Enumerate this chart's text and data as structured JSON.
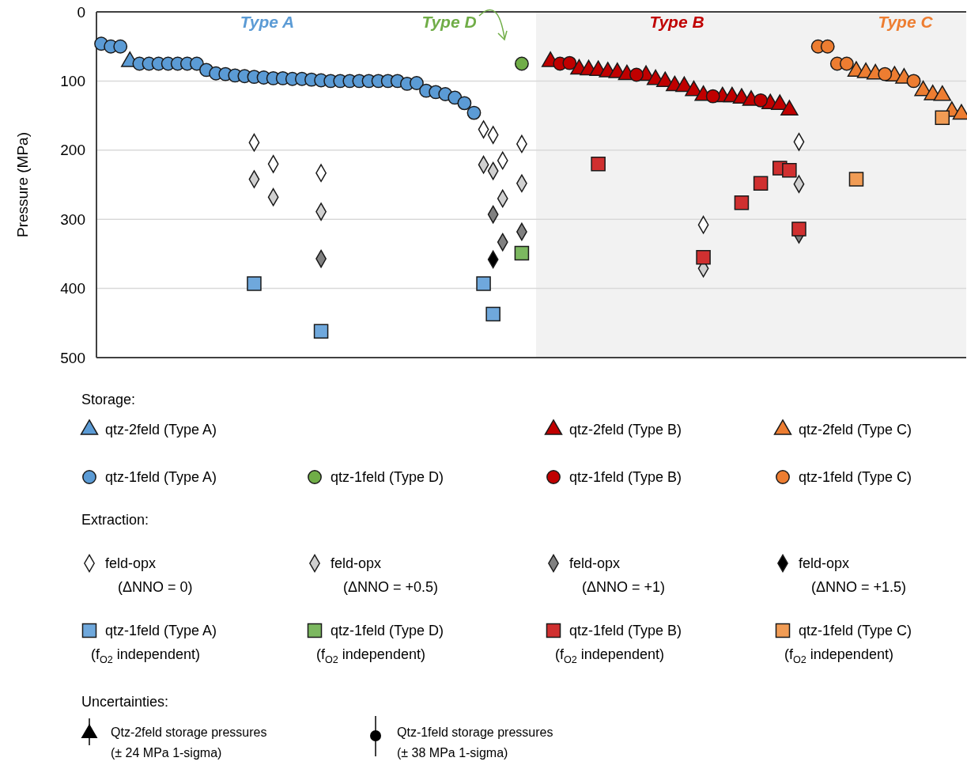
{
  "chart_data": {
    "type": "scatter",
    "ylabel": "Pressure (MPa)",
    "ylim": [
      500,
      0
    ],
    "yticks": [
      0,
      100,
      200,
      300,
      400,
      500
    ],
    "grid": "y",
    "legend": "bottom",
    "tick_labels": "y",
    "categories": [
      null,
      null,
      null,
      null,
      null,
      null,
      null,
      null,
      null,
      null,
      null,
      null,
      null,
      null,
      null,
      null,
      null,
      null,
      null,
      null,
      null,
      null,
      null,
      null,
      null,
      null,
      null,
      null,
      null,
      null,
      null,
      null,
      null,
      null,
      null,
      null,
      null,
      null,
      null,
      null,
      null,
      null,
      null,
      null,
      null,
      null,
      null,
      null,
      null,
      null,
      null,
      null,
      null,
      null,
      null,
      null,
      null,
      null,
      null,
      null,
      null,
      null,
      null,
      null,
      null,
      null,
      null,
      null,
      null,
      null,
      null,
      null,
      null,
      null,
      null,
      null,
      null,
      null,
      null,
      null,
      null,
      null,
      null,
      null,
      null,
      null,
      null,
      null,
      null,
      null,
      null
    ],
    "annotations": [
      "Type A",
      "Type D",
      "Type B",
      "Type C",
      "Storage:",
      "Extraction:",
      "Uncertainties:",
      "Qtz-2feld storage pressures (± 24 MPa 1-sigma)",
      "Qtz-1feld storage pressures (± 38 MPa 1-sigma)"
    ],
    "series": [
      {
        "name": "qtz-2feld (Type A)",
        "marker": "triangle",
        "color": "#5b9bd5",
        "values": [
          null,
          null,
          null,
          72,
          null,
          null,
          null,
          null,
          null,
          null,
          null,
          null,
          null,
          null,
          null,
          null,
          null,
          null,
          null,
          null,
          null,
          null,
          null,
          null,
          null,
          null,
          null,
          null,
          null,
          null,
          null,
          null,
          null,
          null,
          null,
          null,
          null,
          null,
          null,
          null,
          null,
          null,
          null,
          null,
          null,
          null,
          null,
          null,
          null,
          null,
          null,
          null,
          null,
          null,
          null,
          null,
          null,
          null,
          null,
          null,
          null,
          null,
          null,
          null,
          null,
          null,
          null,
          null,
          null,
          null,
          null,
          null,
          null,
          null,
          null,
          null,
          null,
          null,
          null,
          null,
          null,
          null,
          null,
          null,
          null,
          null,
          null,
          null,
          null,
          null,
          null
        ]
      },
      {
        "name": "qtz-2feld (Type B)",
        "marker": "triangle",
        "color": "#c00000",
        "values": [
          null,
          null,
          null,
          null,
          null,
          null,
          null,
          null,
          null,
          null,
          null,
          null,
          null,
          null,
          null,
          null,
          null,
          null,
          null,
          null,
          null,
          null,
          null,
          null,
          null,
          null,
          null,
          null,
          null,
          null,
          null,
          null,
          null,
          null,
          null,
          null,
          null,
          null,
          null,
          null,
          null,
          null,
          null,
          null,
          null,
          null,
          null,
          72,
          null,
          null,
          83,
          84,
          85,
          87,
          88,
          91,
          null,
          92,
          98,
          101,
          107,
          108,
          114,
          121,
          null,
          123,
          123,
          125,
          128,
          null,
          133,
          134,
          142,
          null,
          null,
          null,
          null,
          null,
          null,
          null,
          null,
          null,
          null,
          null,
          null,
          null,
          null,
          null,
          null,
          null,
          null
        ]
      },
      {
        "name": "qtz-2feld (Type C)",
        "marker": "triangle",
        "color": "#ed7d31",
        "values": [
          null,
          null,
          null,
          null,
          null,
          null,
          null,
          null,
          null,
          null,
          null,
          null,
          null,
          null,
          null,
          null,
          null,
          null,
          null,
          null,
          null,
          null,
          null,
          null,
          null,
          null,
          null,
          null,
          null,
          null,
          null,
          null,
          null,
          null,
          null,
          null,
          null,
          null,
          null,
          null,
          null,
          null,
          null,
          null,
          null,
          null,
          null,
          null,
          null,
          null,
          null,
          null,
          null,
          null,
          null,
          null,
          null,
          null,
          null,
          null,
          null,
          null,
          null,
          null,
          null,
          null,
          null,
          null,
          null,
          null,
          null,
          null,
          null,
          null,
          null,
          null,
          null,
          null,
          null,
          86,
          88,
          90,
          null,
          93,
          96,
          null,
          114,
          120,
          121,
          144,
          148
        ]
      },
      {
        "name": "qtz-1feld (Type A)",
        "marker": "circle",
        "color": "#5b9bd5",
        "values": [
          46,
          50,
          50,
          null,
          75,
          75,
          75,
          75,
          75,
          75,
          75,
          84,
          89,
          90,
          92,
          93,
          94,
          95,
          96,
          96,
          97,
          97,
          98,
          99,
          100,
          100,
          100,
          100,
          100,
          100,
          100,
          100,
          104,
          103,
          114,
          116,
          119,
          124,
          132,
          146,
          null,
          null,
          null,
          null,
          null,
          null,
          null,
          null,
          null,
          null,
          null,
          null,
          null,
          null,
          null,
          null,
          null,
          null,
          null,
          null,
          null,
          null,
          null,
          null,
          null,
          null,
          null,
          null,
          null,
          null,
          null,
          null,
          null,
          null,
          null,
          null,
          null,
          null,
          null,
          null,
          null,
          null,
          null,
          null,
          null,
          null,
          null,
          null,
          null,
          null,
          null
        ]
      },
      {
        "name": "qtz-1feld (Type D)",
        "marker": "circle",
        "color": "#70ad47",
        "values": [
          null,
          null,
          null,
          null,
          null,
          null,
          null,
          null,
          null,
          null,
          null,
          null,
          null,
          null,
          null,
          null,
          null,
          null,
          null,
          null,
          null,
          null,
          null,
          null,
          null,
          null,
          null,
          null,
          null,
          null,
          null,
          null,
          null,
          null,
          null,
          null,
          null,
          null,
          null,
          null,
          null,
          null,
          null,
          null,
          75,
          null,
          null,
          null,
          null,
          null,
          null,
          null,
          null,
          null,
          null,
          null,
          null,
          null,
          null,
          null,
          null,
          null,
          null,
          null,
          null,
          null,
          null,
          null,
          null,
          null,
          null,
          null,
          null,
          null,
          null,
          null,
          null,
          null,
          null,
          null,
          null,
          null,
          null,
          null,
          null,
          null,
          null,
          null,
          null,
          null,
          null
        ]
      },
      {
        "name": "qtz-1feld (Type B)",
        "marker": "circle",
        "color": "#c00000",
        "values": [
          null,
          null,
          null,
          null,
          null,
          null,
          null,
          null,
          null,
          null,
          null,
          null,
          null,
          null,
          null,
          null,
          null,
          null,
          null,
          null,
          null,
          null,
          null,
          null,
          null,
          null,
          null,
          null,
          null,
          null,
          null,
          null,
          null,
          null,
          null,
          null,
          null,
          null,
          null,
          null,
          null,
          null,
          null,
          null,
          null,
          null,
          null,
          null,
          75,
          74,
          null,
          null,
          null,
          null,
          null,
          null,
          91,
          null,
          null,
          null,
          null,
          null,
          null,
          null,
          122,
          null,
          null,
          null,
          null,
          128,
          null,
          null,
          null,
          null,
          null,
          null,
          null,
          null,
          null,
          null,
          null,
          null,
          null,
          null,
          null,
          null,
          null,
          null,
          null,
          null,
          null
        ]
      },
      {
        "name": "qtz-1feld (Type C)",
        "marker": "circle",
        "color": "#ed7d31",
        "values": [
          null,
          null,
          null,
          null,
          null,
          null,
          null,
          null,
          null,
          null,
          null,
          null,
          null,
          null,
          null,
          null,
          null,
          null,
          null,
          null,
          null,
          null,
          null,
          null,
          null,
          null,
          null,
          null,
          null,
          null,
          null,
          null,
          null,
          null,
          null,
          null,
          null,
          null,
          null,
          null,
          null,
          null,
          null,
          null,
          null,
          null,
          null,
          null,
          null,
          null,
          null,
          null,
          null,
          null,
          null,
          null,
          null,
          null,
          null,
          null,
          null,
          null,
          null,
          null,
          null,
          null,
          null,
          null,
          null,
          null,
          null,
          null,
          null,
          null,
          null,
          50,
          50,
          75,
          75,
          null,
          null,
          null,
          90,
          null,
          null,
          100,
          null,
          null,
          null,
          null,
          null
        ]
      },
      {
        "name": "feld-opx (ΔNNO = 0)",
        "marker": "diamond",
        "color": "#ffffff",
        "values": [
          null,
          null,
          null,
          null,
          null,
          null,
          null,
          null,
          null,
          null,
          null,
          null,
          null,
          null,
          null,
          null,
          189,
          null,
          220,
          null,
          null,
          null,
          null,
          233,
          null,
          null,
          null,
          null,
          null,
          null,
          null,
          null,
          null,
          null,
          null,
          null,
          null,
          null,
          null,
          null,
          170,
          178,
          215,
          null,
          191,
          null,
          null,
          null,
          null,
          null,
          null,
          null,
          null,
          null,
          null,
          null,
          null,
          null,
          null,
          null,
          null,
          null,
          null,
          308,
          null,
          null,
          null,
          null,
          null,
          null,
          null,
          null,
          null,
          188,
          null,
          null,
          null,
          null,
          null,
          null,
          null,
          null,
          null,
          null,
          null,
          null,
          null,
          null,
          null,
          null,
          null
        ]
      },
      {
        "name": "feld-opx (ΔNNO = +0.5)",
        "marker": "diamond",
        "color": "#d0d0d0",
        "values": [
          null,
          null,
          null,
          null,
          null,
          null,
          null,
          null,
          null,
          null,
          null,
          null,
          null,
          null,
          null,
          null,
          242,
          null,
          268,
          null,
          null,
          null,
          null,
          289,
          null,
          null,
          null,
          null,
          null,
          null,
          null,
          null,
          null,
          null,
          null,
          null,
          null,
          null,
          null,
          null,
          221,
          230,
          270,
          null,
          248,
          null,
          null,
          null,
          null,
          null,
          null,
          null,
          null,
          null,
          null,
          null,
          null,
          null,
          null,
          null,
          null,
          null,
          null,
          371,
          null,
          null,
          null,
          null,
          null,
          null,
          null,
          null,
          null,
          249,
          null,
          null,
          null,
          null,
          null,
          null,
          null,
          null,
          null,
          null,
          null,
          null,
          null,
          null,
          null,
          null,
          null
        ]
      },
      {
        "name": "feld-opx (ΔNNO = +1)",
        "marker": "diamond",
        "color": "#808080",
        "values": [
          null,
          null,
          null,
          null,
          null,
          null,
          null,
          null,
          null,
          null,
          null,
          null,
          null,
          null,
          null,
          null,
          null,
          null,
          null,
          null,
          null,
          null,
          null,
          357,
          null,
          null,
          null,
          null,
          null,
          null,
          null,
          null,
          null,
          null,
          null,
          null,
          null,
          null,
          null,
          null,
          null,
          293,
          333,
          null,
          318,
          null,
          null,
          null,
          null,
          null,
          null,
          null,
          null,
          null,
          null,
          null,
          null,
          null,
          null,
          null,
          null,
          null,
          null,
          null,
          null,
          null,
          null,
          null,
          null,
          null,
          null,
          null,
          null,
          322,
          null,
          null,
          null,
          null,
          null,
          null,
          null,
          null,
          null,
          null,
          null,
          null,
          null,
          null,
          null,
          null,
          null
        ]
      },
      {
        "name": "feld-opx (ΔNNO = +1.5)",
        "marker": "diamond",
        "color": "#000000",
        "values": [
          null,
          null,
          null,
          null,
          null,
          null,
          null,
          null,
          null,
          null,
          null,
          null,
          null,
          null,
          null,
          null,
          null,
          null,
          null,
          null,
          null,
          null,
          null,
          null,
          null,
          null,
          null,
          null,
          null,
          null,
          null,
          null,
          null,
          null,
          null,
          null,
          null,
          null,
          null,
          null,
          null,
          358,
          null,
          null,
          null,
          null,
          null,
          null,
          null,
          null,
          null,
          null,
          null,
          null,
          null,
          null,
          null,
          null,
          null,
          null,
          null,
          null,
          null,
          null,
          null,
          null,
          null,
          null,
          null,
          null,
          null,
          null,
          null,
          null,
          null,
          null,
          null,
          null,
          null,
          null,
          null,
          null,
          null,
          null,
          null,
          null,
          null,
          null,
          null,
          null,
          null
        ]
      },
      {
        "name": "qtz-1feld (Type A) (f$_{O2}$ independent)",
        "marker": "square",
        "color": "#6fa8dc",
        "values": [
          null,
          null,
          null,
          null,
          null,
          null,
          null,
          null,
          null,
          null,
          null,
          null,
          null,
          null,
          null,
          null,
          393,
          null,
          null,
          null,
          null,
          null,
          null,
          462,
          null,
          null,
          null,
          null,
          null,
          null,
          null,
          null,
          null,
          null,
          null,
          null,
          null,
          null,
          null,
          null,
          393,
          437,
          null,
          null,
          null,
          null,
          null,
          null,
          null,
          null,
          null,
          null,
          null,
          null,
          null,
          null,
          null,
          null,
          null,
          null,
          null,
          null,
          null,
          null,
          null,
          null,
          null,
          null,
          null,
          null,
          null,
          null,
          null,
          null,
          null,
          null,
          null,
          null,
          null,
          null,
          null,
          null,
          null,
          null,
          null,
          null,
          null,
          null,
          null,
          null,
          null
        ]
      },
      {
        "name": "qtz-1feld (Type D) (f$_{O2}$ independent)",
        "marker": "square",
        "color": "#7cb860",
        "values": [
          null,
          null,
          null,
          null,
          null,
          null,
          null,
          null,
          null,
          null,
          null,
          null,
          null,
          null,
          null,
          null,
          null,
          null,
          null,
          null,
          null,
          null,
          null,
          null,
          null,
          null,
          null,
          null,
          null,
          null,
          null,
          null,
          null,
          null,
          null,
          null,
          null,
          null,
          null,
          null,
          null,
          null,
          null,
          null,
          349,
          null,
          null,
          null,
          null,
          null,
          null,
          null,
          null,
          null,
          null,
          null,
          null,
          null,
          null,
          null,
          null,
          null,
          null,
          null,
          null,
          null,
          null,
          null,
          null,
          null,
          null,
          null,
          null,
          null,
          null,
          null,
          null,
          null,
          null,
          null,
          null,
          null,
          null,
          null,
          null,
          null,
          null,
          null,
          null,
          null,
          null
        ]
      },
      {
        "name": "qtz-1feld (Type B) (f$_{O2}$ independent)",
        "marker": "square",
        "color": "#d03030",
        "values": [
          null,
          null,
          null,
          null,
          null,
          null,
          null,
          null,
          null,
          null,
          null,
          null,
          null,
          null,
          null,
          null,
          null,
          null,
          null,
          null,
          null,
          null,
          null,
          null,
          null,
          null,
          null,
          null,
          null,
          null,
          null,
          null,
          null,
          null,
          null,
          null,
          null,
          null,
          null,
          null,
          null,
          null,
          null,
          null,
          null,
          null,
          null,
          null,
          null,
          null,
          null,
          null,
          220,
          null,
          null,
          null,
          null,
          null,
          null,
          null,
          null,
          null,
          null,
          355,
          null,
          null,
          null,
          276,
          null,
          248,
          null,
          226,
          229,
          314,
          null,
          null,
          null,
          null,
          null,
          null,
          null,
          null,
          null,
          null,
          null,
          null,
          null,
          null,
          null,
          null,
          null
        ]
      },
      {
        "name": "qtz-1feld (Type C) (f$_{O2}$ independent)",
        "marker": "square",
        "color": "#f19c55",
        "values": [
          null,
          null,
          null,
          null,
          null,
          null,
          null,
          null,
          null,
          null,
          null,
          null,
          null,
          null,
          null,
          null,
          null,
          null,
          null,
          null,
          null,
          null,
          null,
          null,
          null,
          null,
          null,
          null,
          null,
          null,
          null,
          null,
          null,
          null,
          null,
          null,
          null,
          null,
          null,
          null,
          null,
          null,
          null,
          null,
          null,
          null,
          null,
          null,
          null,
          null,
          null,
          null,
          null,
          null,
          null,
          null,
          null,
          null,
          null,
          null,
          null,
          null,
          null,
          null,
          null,
          null,
          null,
          null,
          null,
          null,
          null,
          null,
          null,
          null,
          null,
          null,
          null,
          null,
          null,
          242,
          null,
          null,
          null,
          null,
          null,
          null,
          null,
          null,
          153,
          null,
          null
        ]
      }
    ]
  }
}
